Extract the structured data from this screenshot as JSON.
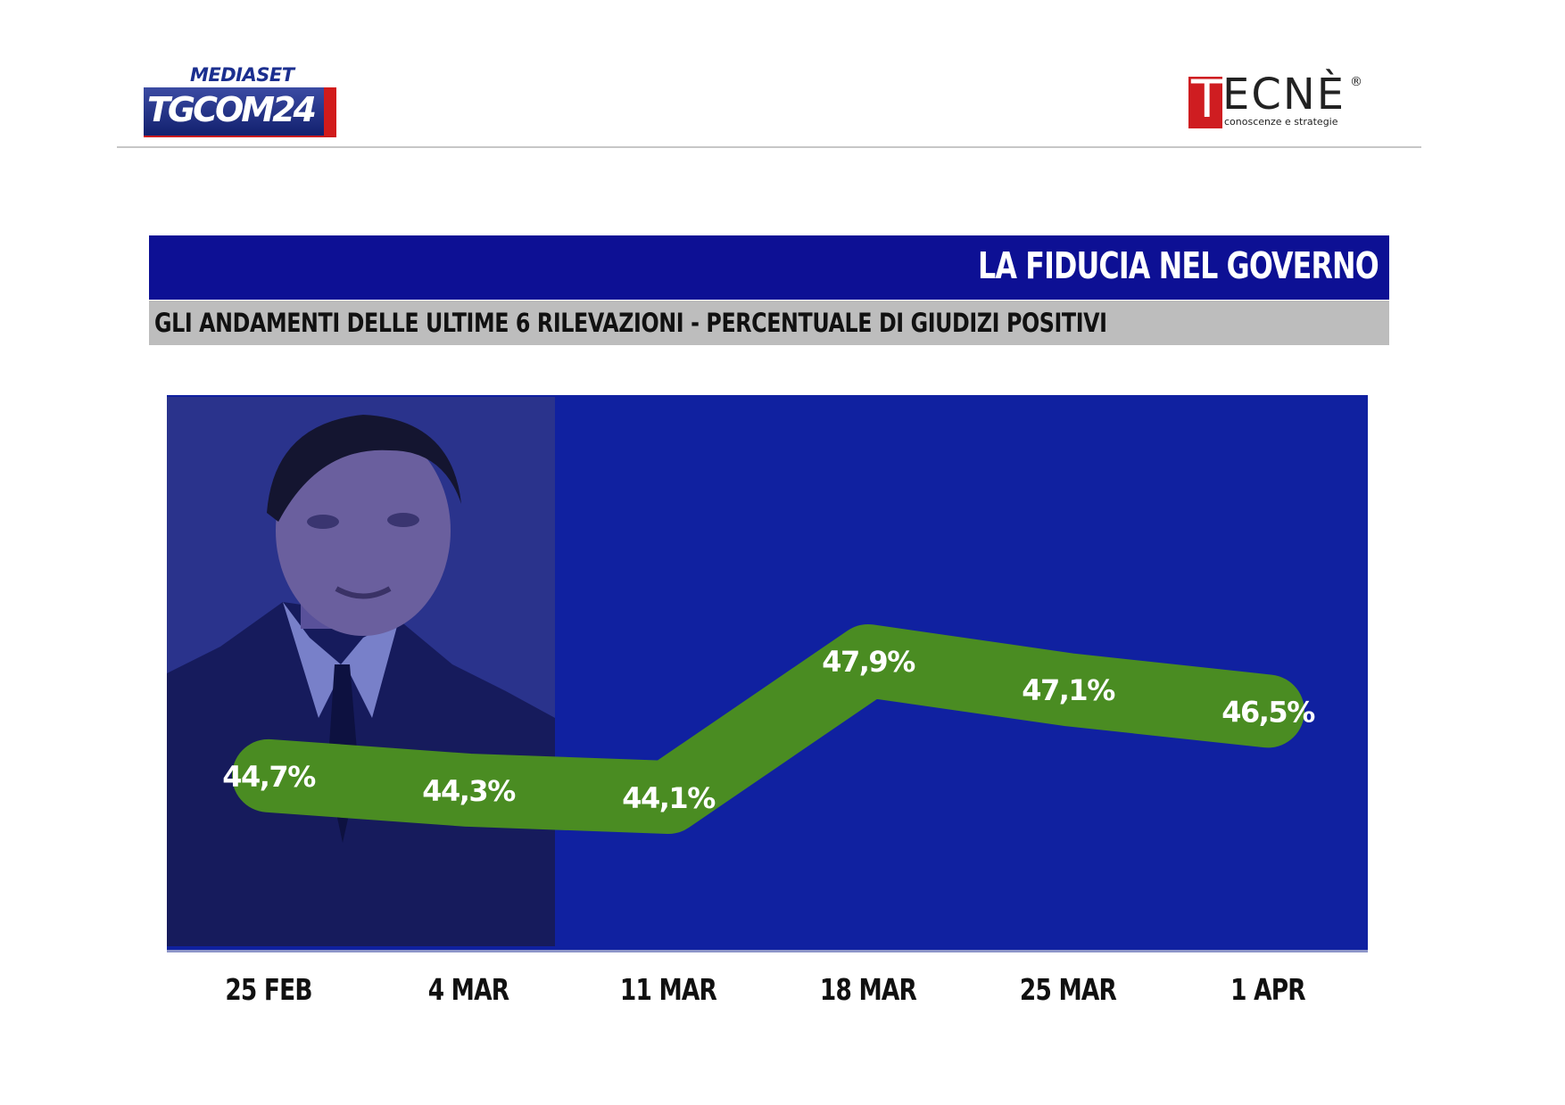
{
  "header": {
    "mediaset_text": "MEDIASET",
    "tgcom_text": "TGCOM24",
    "tecne_initial": "T",
    "tecne_rest": "ECNÈ",
    "tecne_registered": "®",
    "tecne_tagline": "conoscenze e strategie"
  },
  "colors": {
    "title_bar": "#0d1094",
    "subtitle_bar": "#bdbdbd",
    "panel": "#1021a0",
    "line": "#4a8c22",
    "label": "#ffffff"
  },
  "chart_data": {
    "type": "line",
    "title": "LA FIDUCIA NEL GOVERNO",
    "subtitle": "GLI ANDAMENTI DELLE ULTIME 6 RILEVAZIONI - PERCENTUALE DI GIUDIZI POSITIVI",
    "categories": [
      "25 FEB",
      "4 MAR",
      "11 MAR",
      "18 MAR",
      "25 MAR",
      "1 APR"
    ],
    "series": [
      {
        "values": [
          44.7,
          44.3,
          44.1,
          47.9,
          47.1,
          46.5
        ],
        "labels": [
          "44,7%",
          "44,3%",
          "44,1%",
          "47,9%",
          "47,1%",
          "46,5%"
        ]
      }
    ],
    "xlabel": "",
    "ylabel": "",
    "grid": false,
    "legend": "none"
  }
}
